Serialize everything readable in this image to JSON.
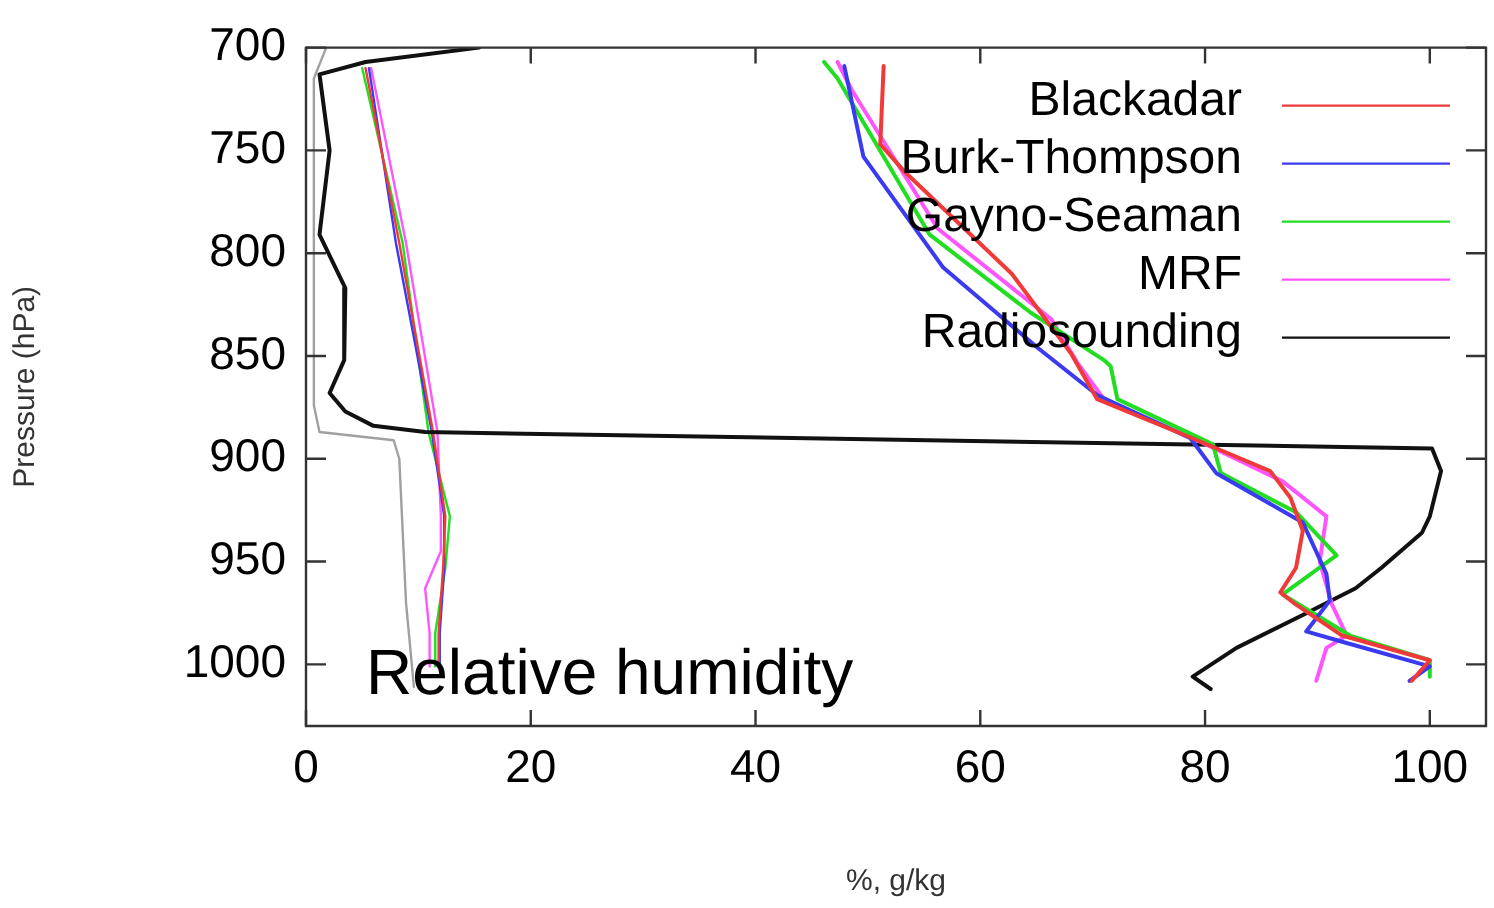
{
  "chart_data": {
    "type": "line",
    "xlabel": "%, g/kg",
    "ylabel": "Pressure (hPa)",
    "xlim": [
      0,
      105
    ],
    "xticks": [
      0,
      20,
      40,
      60,
      80,
      100
    ],
    "ylim": [
      1030,
      700
    ],
    "yticks": [
      700,
      750,
      800,
      850,
      900,
      950,
      1000
    ],
    "grid": false,
    "legend": "top right",
    "marker": "none",
    "line_style": "solid",
    "annotations": [
      "Relative humidity"
    ],
    "series": [
      {
        "name": "Blackadar",
        "color": "#f03a3a",
        "x": [
          51.4,
          51.1,
          53.2,
          62.8,
          68.1,
          70.4,
          79.3,
          85.8,
          87.6,
          88.7,
          88.1,
          86.7,
          88.1,
          92.2,
          100,
          98.4
        ],
        "values": [
          709,
          747,
          760,
          810,
          849,
          871,
          891,
          906,
          919,
          935,
          953,
          965,
          971,
          986,
          998,
          1008
        ]
      },
      {
        "name": "Burk-Thompson",
        "color": "#3a3af0",
        "x": [
          47.9,
          49.6,
          56.7,
          65.1,
          70.4,
          78.7,
          81,
          88.7,
          90.8,
          91.1,
          89,
          92.2,
          100,
          98.2
        ],
        "values": [
          709,
          753,
          807,
          846,
          869,
          890,
          907,
          931,
          956,
          969,
          984,
          989,
          1001,
          1008
        ]
      },
      {
        "name": "Gayno-Seaman",
        "color": "#22dd22",
        "x": [
          46.1,
          47.3,
          55.5,
          64.5,
          71,
          71.6,
          72.2,
          80.7,
          81.4,
          88.1,
          91.7,
          86.9,
          89.9,
          92.9,
          100,
          100
        ],
        "values": [
          707,
          715,
          791,
          829,
          852,
          855,
          871,
          893,
          907,
          926,
          947,
          966,
          976,
          986,
          998,
          1006
        ]
      },
      {
        "name": "MRF",
        "color": "#ff55ff",
        "x": [
          47.3,
          48.6,
          56.2,
          66.3,
          68.6,
          71,
          79.3,
          86.9,
          90.8,
          90.2,
          91.3,
          92.6,
          90.8,
          89.9
        ],
        "values": [
          707,
          721,
          788,
          832,
          853,
          871,
          891,
          911,
          928,
          950,
          971,
          986,
          992,
          1008
        ]
      },
      {
        "name": "Radiosounding",
        "color": "#111111",
        "x": [
          15.4,
          5.3,
          1.2,
          2.1,
          1.2,
          3.5,
          3.4,
          2.1,
          3.5,
          6,
          10.6,
          100.2,
          101,
          100,
          99.3,
          95.7,
          93.4,
          88.7,
          82.8,
          78.9,
          80.5
        ],
        "values": [
          700,
          707,
          713,
          750,
          791,
          817,
          852,
          868,
          877,
          884,
          887,
          895,
          906,
          928,
          936,
          953,
          963,
          976,
          992,
          1006,
          1012
        ]
      },
      {
        "color": "#f03a3a",
        "x": [
          5.3,
          8.3,
          11.3,
          12.4,
          12.2,
          11.8,
          11.8
        ],
        "values": [
          710,
          795,
          887,
          928,
          953,
          985,
          1001
        ]
      },
      {
        "color": "#3a3af0",
        "x": [
          5.6,
          8.0,
          11.2,
          12.3,
          12.3,
          11.9,
          11.9
        ],
        "values": [
          710,
          795,
          887,
          928,
          953,
          985,
          1001
        ]
      },
      {
        "color": "#22dd22",
        "x": [
          5.0,
          8.6,
          10.9,
          12.8,
          12.4,
          11.5,
          11.5
        ],
        "values": [
          710,
          795,
          887,
          928,
          953,
          985,
          1001
        ]
      },
      {
        "color": "#ff55ff",
        "x": [
          5.8,
          8.9,
          11.7,
          12.0,
          12,
          10.6,
          11,
          11
        ],
        "values": [
          710,
          795,
          887,
          928,
          945,
          963,
          985,
          1001
        ]
      },
      {
        "color": "#a0a0a0",
        "x": [
          1.8,
          0.7,
          0.7,
          1.2,
          7.8,
          8.3,
          8.9,
          9.6
        ],
        "values": [
          700,
          715,
          874,
          887,
          891,
          900,
          970,
          1011
        ]
      }
    ]
  }
}
